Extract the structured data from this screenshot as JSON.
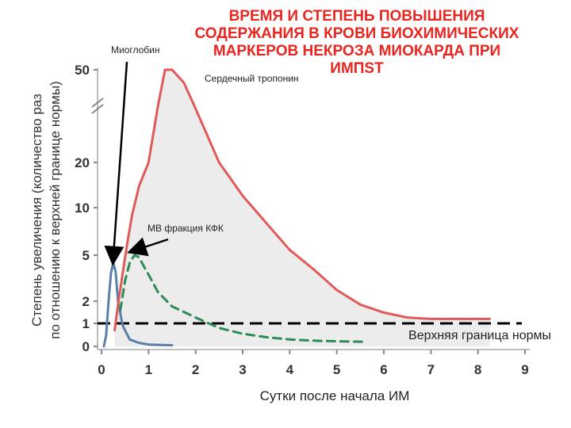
{
  "title_lines": [
    "ВРЕМЯ И СТЕПЕНЬ ПОВЫШЕНИЯ",
    "СОДЕРЖАНИЯ В КРОВИ БИОХИМИЧЕСКИХ",
    "МАРКЕРОВ НЕКРОЗА МИОКАРДА ПРИ",
    "ИМПST"
  ],
  "chart_data": {
    "type": "line",
    "xlabel": "Сутки после начала ИМ",
    "ylabel_lines": [
      "Степень увеличения (количество раз",
      "по отношению к верхней границе нормы)"
    ],
    "x_ticks": [
      0,
      1,
      2,
      3,
      4,
      5,
      6,
      7,
      8,
      9
    ],
    "xlim": [
      0,
      9
    ],
    "y_ticks": [
      "0",
      "1",
      "2",
      "5",
      "10",
      "20",
      "50"
    ],
    "y_axis_break": "between 20 and 50",
    "reference_line": {
      "label": "Верхняя граница нормы",
      "y": 1,
      "style": "dashed",
      "color": "#000000"
    },
    "series": [
      {
        "name": "Миоглобин",
        "color": "#5a7fa8",
        "style": "solid",
        "points": [
          [
            0.05,
            0
          ],
          [
            0.1,
            0.5
          ],
          [
            0.15,
            2.0
          ],
          [
            0.2,
            3.5
          ],
          [
            0.25,
            4.3
          ],
          [
            0.3,
            3.6
          ],
          [
            0.35,
            2.0
          ],
          [
            0.45,
            0.9
          ],
          [
            0.6,
            0.3
          ],
          [
            0.8,
            0.15
          ],
          [
            1.0,
            0.08
          ],
          [
            1.5,
            0.05
          ]
        ]
      },
      {
        "name": "Сердечный тропонин",
        "color": "#e05a5a",
        "style": "solid",
        "points": [
          [
            0.28,
            0.7
          ],
          [
            0.35,
            1.8
          ],
          [
            0.45,
            3.5
          ],
          [
            0.55,
            6
          ],
          [
            0.65,
            9
          ],
          [
            0.8,
            14
          ],
          [
            1.0,
            20
          ],
          [
            1.2,
            35
          ],
          [
            1.35,
            50
          ],
          [
            1.5,
            50
          ],
          [
            1.75,
            44
          ],
          [
            2.0,
            34
          ],
          [
            2.5,
            20
          ],
          [
            3.0,
            12
          ],
          [
            3.5,
            8
          ],
          [
            4.0,
            5.4
          ],
          [
            4.5,
            3.8
          ],
          [
            5.0,
            2.5
          ],
          [
            5.5,
            1.8
          ],
          [
            6.0,
            1.4
          ],
          [
            6.5,
            1.2
          ],
          [
            7.0,
            1.15
          ],
          [
            7.5,
            1.15
          ],
          [
            8.25,
            1.15
          ]
        ]
      },
      {
        "name": "МВ фракция КФК",
        "color": "#2e8b57",
        "style": "dashed",
        "points": [
          [
            0.4,
            1.5
          ],
          [
            0.5,
            3.0
          ],
          [
            0.6,
            4.3
          ],
          [
            0.7,
            5.0
          ],
          [
            0.8,
            4.8
          ],
          [
            0.9,
            4.0
          ],
          [
            1.0,
            3.4
          ],
          [
            1.2,
            2.4
          ],
          [
            1.5,
            1.7
          ],
          [
            2.0,
            1.2
          ],
          [
            2.5,
            0.8
          ],
          [
            3.0,
            0.55
          ],
          [
            3.5,
            0.4
          ],
          [
            4.0,
            0.3
          ],
          [
            4.5,
            0.25
          ],
          [
            5.0,
            0.22
          ],
          [
            5.6,
            0.2
          ]
        ]
      }
    ],
    "annotations": [
      {
        "text": "Миоглобин",
        "points_to": [
          0.25,
          4.3
        ]
      },
      {
        "text": "Сердечный тропонин"
      },
      {
        "text": "МВ фракция КФК",
        "points_to": [
          0.7,
          5.0
        ]
      }
    ]
  }
}
